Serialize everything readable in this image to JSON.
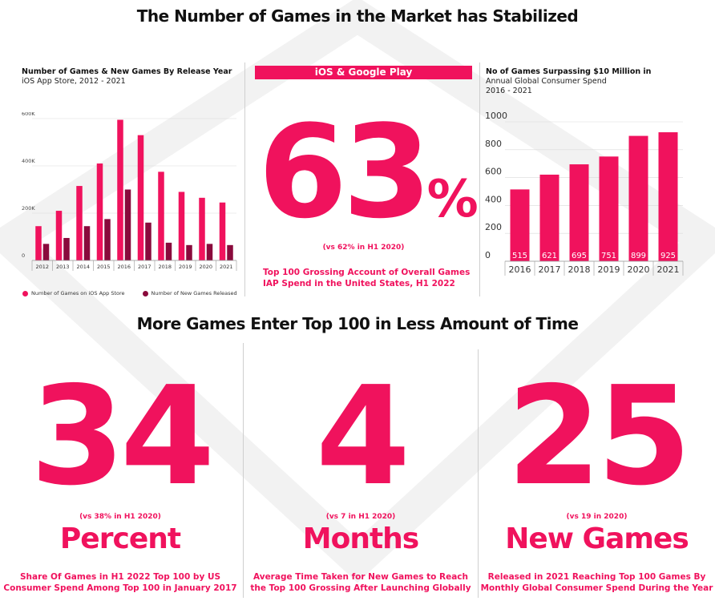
{
  "header": {
    "title": "The Number of Games in the Market has Stabilized",
    "section2_title": "More Games Enter Top 100 in Less Amount of Time"
  },
  "colors": {
    "accent": "#f0125d",
    "dark": "#8a0a3c",
    "grid": "#d9d9d9"
  },
  "panel_left": {
    "title": "Number of Games & New Games By Release Year",
    "subtitle": "iOS App Store, 2012 - 2021",
    "legend": [
      "Number of Games on iOS App Store",
      "Number of New Games Released"
    ]
  },
  "panel_mid": {
    "banner": "iOS & Google Play",
    "big_number": "63",
    "percent_sign": "%",
    "note": "(vs 62% in H1 2020)",
    "description_line1": "Top 100 Grossing Account of Overall Games",
    "description_line2": "IAP Spend in the United States, H1 2022"
  },
  "panel_right": {
    "title": "No of Games Surpassing $10 Million in",
    "subtitle_line1": "Annual Global Consumer Spend",
    "subtitle_line2": "2016 - 2021"
  },
  "stats": [
    {
      "number": "34",
      "note": "(vs 38% in H1 2020)",
      "unit": "Percent",
      "desc_line1": "Share Of Games in H1 2022 Top 100 by US",
      "desc_line2": "Consumer Spend Among Top 100 in January 2017"
    },
    {
      "number": "4",
      "note": "(vs 7 in H1 2020)",
      "unit": "Months",
      "desc_line1": "Average Time Taken for New Games to Reach",
      "desc_line2": "the Top 100 Grossing After Launching Globally"
    },
    {
      "number": "25",
      "note": "(vs 19 in 2020)",
      "unit": "New Games",
      "desc_line1": "Released in 2021 Reaching Top 100 Games By",
      "desc_line2": "Monthly Global Consumer Spend During the Year"
    }
  ],
  "chart_data": [
    {
      "type": "bar",
      "categories": [
        "2012",
        "2013",
        "2014",
        "2015",
        "2016",
        "2017",
        "2018",
        "2019",
        "2020",
        "2021"
      ],
      "series": [
        {
          "name": "Number of Games on iOS App Store",
          "values": [
            145000,
            210000,
            315000,
            410000,
            595000,
            530000,
            375000,
            290000,
            265000,
            245000
          ]
        },
        {
          "name": "Number of New Games Released",
          "values": [
            70000,
            95000,
            145000,
            175000,
            300000,
            160000,
            75000,
            65000,
            70000,
            65000
          ]
        }
      ],
      "ylim": [
        0,
        600000
      ],
      "yticks": [
        "0",
        "200K",
        "400K",
        "600K"
      ],
      "grid": true,
      "legend_position": "bottom"
    },
    {
      "type": "bar",
      "categories": [
        "2016",
        "2017",
        "2018",
        "2019",
        "2020",
        "2021"
      ],
      "values": [
        515,
        621,
        695,
        751,
        899,
        925
      ],
      "ylim": [
        0,
        1000
      ],
      "yticks": [
        "0",
        "200",
        "400",
        "600",
        "800",
        "1000"
      ],
      "grid": true
    }
  ]
}
